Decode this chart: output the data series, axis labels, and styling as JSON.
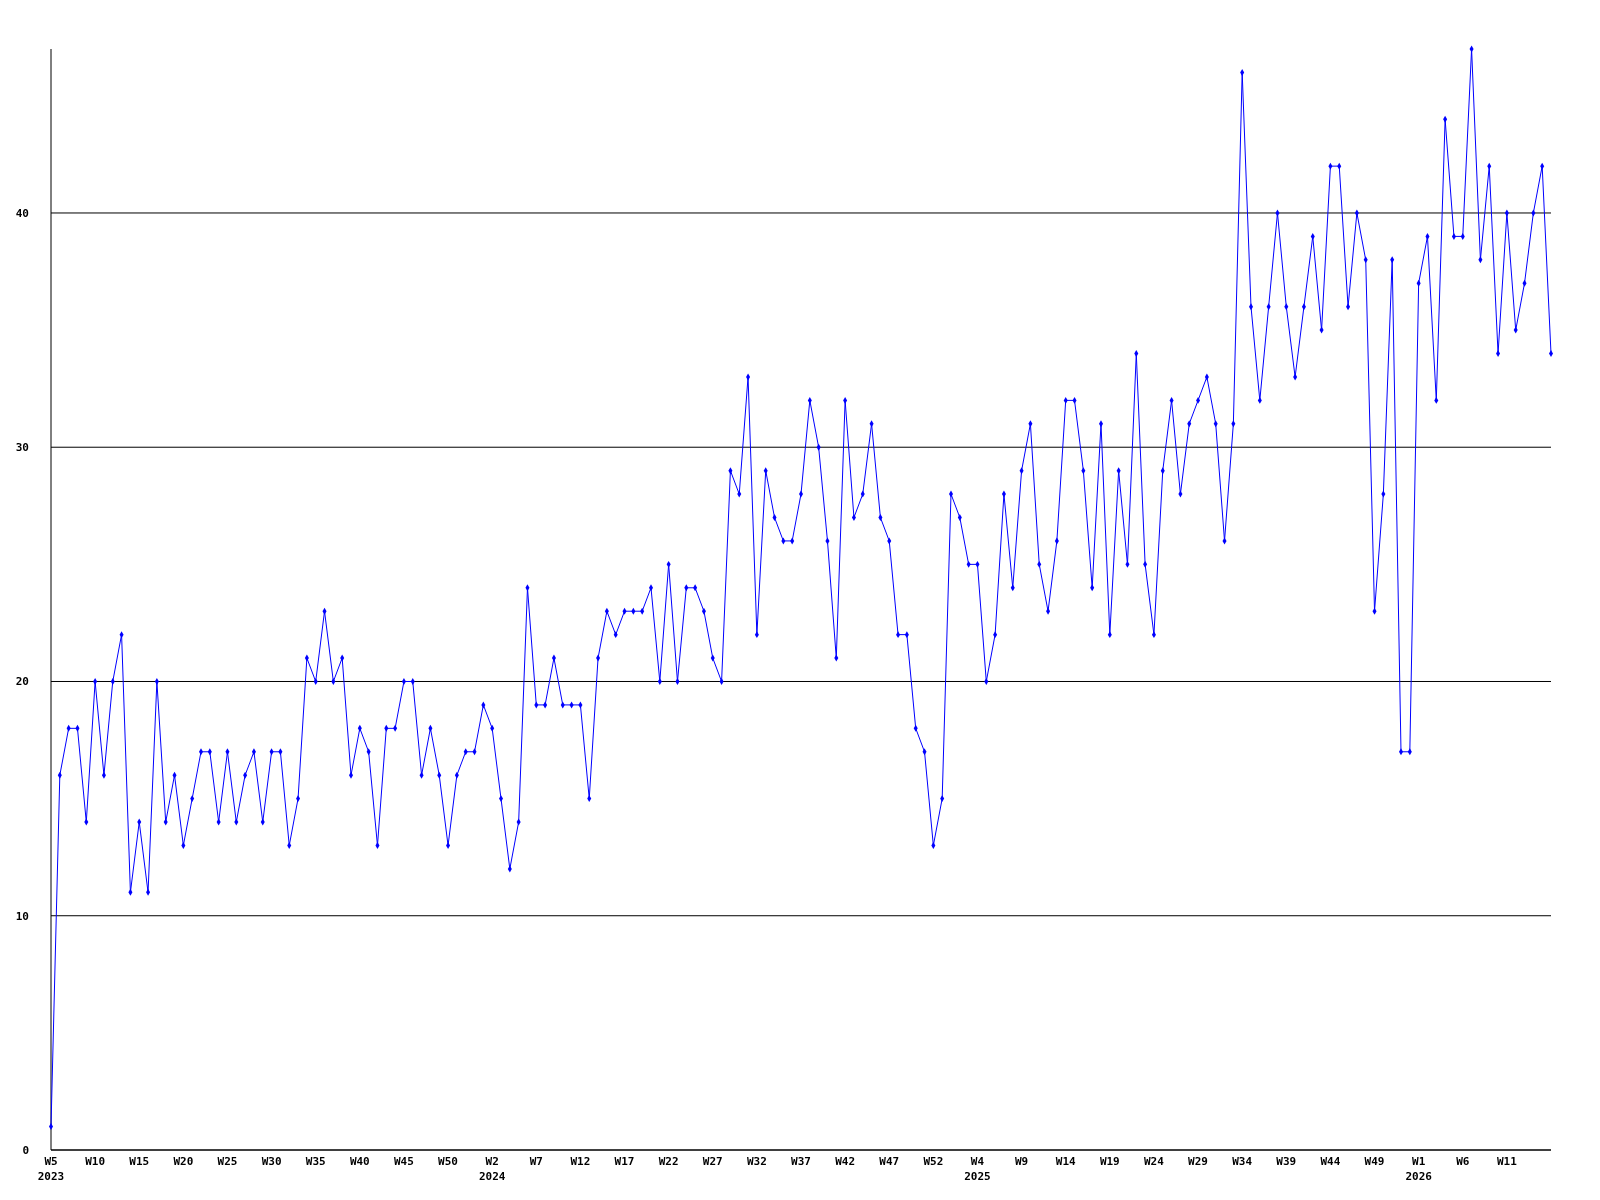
{
  "chart_data": {
    "type": "line",
    "color": "#0000ff",
    "marker": "diamond",
    "grid": "y",
    "ylim": [
      0,
      47
    ],
    "yticks": [
      0,
      10,
      20,
      30,
      40
    ],
    "categories": [
      "W5\n2023",
      null,
      null,
      null,
      null,
      "W10",
      null,
      null,
      null,
      null,
      "W15",
      null,
      null,
      null,
      null,
      "W20",
      null,
      null,
      null,
      null,
      "W25",
      null,
      null,
      null,
      null,
      "W30",
      null,
      null,
      null,
      null,
      "W35",
      null,
      null,
      null,
      null,
      "W40",
      null,
      null,
      null,
      null,
      "W45",
      null,
      null,
      null,
      null,
      "W50",
      null,
      null,
      null,
      null,
      "W2\n2024",
      null,
      null,
      null,
      null,
      "W7",
      null,
      null,
      null,
      null,
      "W12",
      null,
      null,
      null,
      null,
      "W17",
      null,
      null,
      null,
      null,
      "W22",
      null,
      null,
      null,
      null,
      "W27",
      null,
      null,
      null,
      null,
      "W32",
      null,
      null,
      null,
      null,
      "W37",
      null,
      null,
      null,
      null,
      "W42",
      null,
      null,
      null,
      null,
      "W47",
      null,
      null,
      null,
      null,
      "W52",
      null,
      null,
      null,
      null,
      "W4\n2025",
      null,
      null,
      null,
      null,
      "W9",
      null,
      null,
      null,
      null,
      "W14",
      null,
      null,
      null,
      null,
      "W19",
      null,
      null,
      null,
      null,
      "W24",
      null,
      null,
      null,
      null,
      "W29",
      null,
      null,
      null,
      null,
      "W34",
      null,
      null,
      null,
      null,
      "W39",
      null,
      null,
      null,
      null,
      "W44",
      null,
      null,
      null,
      null,
      "W49",
      null,
      null,
      null,
      null,
      "W1\n2026",
      null,
      null,
      null,
      null,
      "W6",
      null,
      null,
      null,
      null,
      "W11",
      null,
      null,
      null,
      null,
      null
    ],
    "values": [
      1,
      16,
      18,
      18,
      14,
      20,
      16,
      20,
      22,
      11,
      14,
      11,
      20,
      14,
      16,
      13,
      15,
      17,
      17,
      14,
      17,
      14,
      16,
      17,
      14,
      17,
      17,
      13,
      15,
      21,
      20,
      23,
      20,
      21,
      16,
      18,
      17,
      13,
      18,
      18,
      20,
      20,
      16,
      18,
      16,
      13,
      16,
      17,
      17,
      19,
      18,
      15,
      12,
      14,
      24,
      19,
      19,
      21,
      19,
      19,
      19,
      15,
      21,
      23,
      22,
      23,
      23,
      23,
      24,
      20,
      25,
      20,
      24,
      24,
      23,
      21,
      20,
      29,
      28,
      33,
      22,
      29,
      27,
      26,
      26,
      28,
      32,
      30,
      26,
      21,
      32,
      27,
      28,
      31,
      27,
      26,
      22,
      22,
      18,
      17,
      13,
      15,
      28,
      27,
      25,
      25,
      20,
      22,
      28,
      24,
      29,
      31,
      25,
      23,
      26,
      32,
      32,
      29,
      24,
      31,
      22,
      29,
      25,
      34,
      25,
      22,
      29,
      32,
      28,
      31,
      32,
      33,
      31,
      26,
      31,
      46,
      36,
      32,
      36,
      40,
      36,
      33,
      36,
      39,
      35,
      42,
      42,
      36,
      40,
      38,
      23,
      28,
      38,
      17,
      17,
      37,
      39,
      32,
      44,
      39,
      39,
      47,
      38,
      42,
      34,
      40,
      35,
      37,
      40,
      42,
      34
    ]
  }
}
